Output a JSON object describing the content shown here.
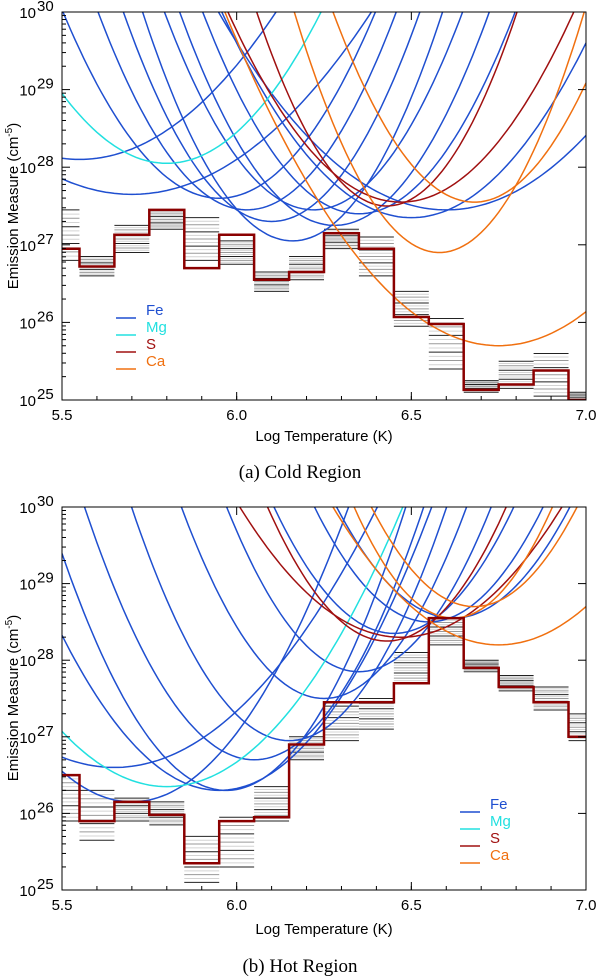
{
  "chart_data": [
    {
      "type": "line",
      "caption": "(a)  Cold Region",
      "xlabel": "Log Temperature (K)",
      "ylabel_main": "Emission Measure (cm",
      "ylabel_sup": "-5",
      "ylabel_close": ")",
      "xlim": [
        5.5,
        7.0
      ],
      "ylim_log10": [
        25,
        30
      ],
      "x_ticks": [
        5.5,
        6.0,
        6.5,
        7.0
      ],
      "x_tick_labels": [
        "5.5",
        "6.0",
        "6.5",
        "7.0"
      ],
      "y_ticks_log10": [
        25,
        26,
        27,
        28,
        29,
        30
      ],
      "y_tick_labels": [
        "10",
        "10",
        "10",
        "10",
        "10",
        "10"
      ],
      "y_tick_sups": [
        "25",
        "26",
        "27",
        "28",
        "29",
        "30"
      ],
      "legend": [
        {
          "label": "Fe",
          "color": "#1f4fd0"
        },
        {
          "label": "Mg",
          "color": "#22e0e0"
        },
        {
          "label": "S",
          "color": "#a01010"
        },
        {
          "label": "Ca",
          "color": "#f07010"
        }
      ],
      "em_loci": {
        "Fe": [
          {
            "min_x": 5.7,
            "min_y": 27.65,
            "curv": 5
          },
          {
            "min_x": 5.55,
            "min_y": 28.1,
            "curv": 6
          },
          {
            "min_x": 5.95,
            "min_y": 27.6,
            "curv": 12
          },
          {
            "min_x": 6.03,
            "min_y": 27.45,
            "curv": 14
          },
          {
            "min_x": 6.1,
            "min_y": 27.3,
            "curv": 15
          },
          {
            "min_x": 6.16,
            "min_y": 27.05,
            "curv": 16
          },
          {
            "min_x": 6.22,
            "min_y": 27.45,
            "curv": 14
          },
          {
            "min_x": 6.28,
            "min_y": 27.25,
            "curv": 14
          },
          {
            "min_x": 6.35,
            "min_y": 27.4,
            "curv": 13
          },
          {
            "min_x": 6.5,
            "min_y": 27.35,
            "curv": 9
          },
          {
            "min_x": 6.6,
            "min_y": 27.45,
            "curv": 6
          }
        ],
        "Mg": [
          {
            "min_x": 5.8,
            "min_y": 28.05,
            "curv": 10
          }
        ],
        "S": [
          {
            "min_x": 6.43,
            "min_y": 27.5,
            "curv": 18
          },
          {
            "min_x": 6.47,
            "min_y": 27.55,
            "curv": 10
          }
        ],
        "Ca": [
          {
            "min_x": 6.58,
            "min_y": 26.9,
            "curv": 18
          },
          {
            "min_x": 6.68,
            "min_y": 27.55,
            "curv": 15
          },
          {
            "min_x": 6.75,
            "min_y": 25.7,
            "curv": 7
          }
        ]
      },
      "solution_em": [
        {
          "x0": 5.5,
          "x1": 5.55,
          "log_em": 26.95
        },
        {
          "x0": 5.55,
          "x1": 5.65,
          "log_em": 26.72
        },
        {
          "x0": 5.65,
          "x1": 5.75,
          "log_em": 27.13
        },
        {
          "x0": 5.75,
          "x1": 5.85,
          "log_em": 27.45
        },
        {
          "x0": 5.85,
          "x1": 5.95,
          "log_em": 26.7
        },
        {
          "x0": 5.95,
          "x1": 6.05,
          "log_em": 27.13
        },
        {
          "x0": 6.05,
          "x1": 6.15,
          "log_em": 26.55
        },
        {
          "x0": 6.15,
          "x1": 6.25,
          "log_em": 26.65
        },
        {
          "x0": 6.25,
          "x1": 6.35,
          "log_em": 27.15
        },
        {
          "x0": 6.35,
          "x1": 6.45,
          "log_em": 26.95
        },
        {
          "x0": 6.45,
          "x1": 6.55,
          "log_em": 26.07
        },
        {
          "x0": 6.55,
          "x1": 6.65,
          "log_em": 25.98
        },
        {
          "x0": 6.65,
          "x1": 6.75,
          "log_em": 25.13
        },
        {
          "x0": 6.75,
          "x1": 6.85,
          "log_em": 25.2
        },
        {
          "x0": 6.85,
          "x1": 6.95,
          "log_em": 25.38
        },
        {
          "x0": 6.95,
          "x1": 7.0,
          "log_em": 25.0
        }
      ],
      "mc_spread": [
        {
          "x0": 5.5,
          "x1": 5.55,
          "lo": 26.8,
          "hi": 27.45
        },
        {
          "x0": 5.55,
          "x1": 5.65,
          "lo": 26.6,
          "hi": 26.85
        },
        {
          "x0": 5.65,
          "x1": 5.75,
          "lo": 26.9,
          "hi": 27.25
        },
        {
          "x0": 5.75,
          "x1": 5.85,
          "lo": 27.2,
          "hi": 27.45
        },
        {
          "x0": 5.85,
          "x1": 5.95,
          "lo": 26.8,
          "hi": 27.35
        },
        {
          "x0": 5.95,
          "x1": 6.05,
          "lo": 26.75,
          "hi": 27.05
        },
        {
          "x0": 6.05,
          "x1": 6.15,
          "lo": 26.4,
          "hi": 26.65
        },
        {
          "x0": 6.15,
          "x1": 6.25,
          "lo": 26.55,
          "hi": 26.85
        },
        {
          "x0": 6.25,
          "x1": 6.35,
          "lo": 26.95,
          "hi": 27.2
        },
        {
          "x0": 6.35,
          "x1": 6.45,
          "lo": 26.6,
          "hi": 27.1
        },
        {
          "x0": 6.45,
          "x1": 6.55,
          "lo": 25.95,
          "hi": 26.4
        },
        {
          "x0": 6.55,
          "x1": 6.65,
          "lo": 25.4,
          "hi": 26.05
        },
        {
          "x0": 6.65,
          "x1": 6.75,
          "lo": 25.1,
          "hi": 25.25
        },
        {
          "x0": 6.75,
          "x1": 6.85,
          "lo": 25.15,
          "hi": 25.5
        },
        {
          "x0": 6.85,
          "x1": 6.95,
          "lo": 25.05,
          "hi": 25.6
        },
        {
          "x0": 6.95,
          "x1": 7.0,
          "lo": 25.0,
          "hi": 25.1
        }
      ]
    },
    {
      "type": "line",
      "caption": "(b)  Hot Region",
      "xlabel": "Log Temperature (K)",
      "ylabel_main": "Emission Measure (cm",
      "ylabel_sup": "-5",
      "ylabel_close": ")",
      "xlim": [
        5.5,
        7.0
      ],
      "ylim_log10": [
        25,
        30
      ],
      "x_ticks": [
        5.5,
        6.0,
        6.5,
        7.0
      ],
      "x_tick_labels": [
        "5.5",
        "6.0",
        "6.5",
        "7.0"
      ],
      "y_ticks_log10": [
        25,
        26,
        27,
        28,
        29,
        30
      ],
      "y_tick_labels": [
        "10",
        "10",
        "10",
        "10",
        "10",
        "10"
      ],
      "y_tick_sups": [
        "25",
        "26",
        "27",
        "28",
        "29",
        "30"
      ],
      "legend": [
        {
          "label": "Fe",
          "color": "#1f4fd0"
        },
        {
          "label": "Mg",
          "color": "#22e0e0"
        },
        {
          "label": "S",
          "color": "#a01010"
        },
        {
          "label": "Ca",
          "color": "#f07010"
        }
      ],
      "em_loci": {
        "Fe": [
          {
            "min_x": 5.65,
            "min_y": 26.6,
            "curv": 6
          },
          {
            "min_x": 5.7,
            "min_y": 26.15,
            "curv": 10
          },
          {
            "min_x": 5.95,
            "min_y": 26.3,
            "curv": 10
          },
          {
            "min_x": 5.97,
            "min_y": 26.3,
            "curv": 14
          },
          {
            "min_x": 6.05,
            "min_y": 26.7,
            "curv": 14
          },
          {
            "min_x": 6.15,
            "min_y": 26.95,
            "curv": 15
          },
          {
            "min_x": 6.25,
            "min_y": 27.5,
            "curv": 15
          },
          {
            "min_x": 6.35,
            "min_y": 27.85,
            "curv": 15
          },
          {
            "min_x": 6.45,
            "min_y": 28.35,
            "curv": 14
          },
          {
            "min_x": 6.55,
            "min_y": 28.5,
            "curv": 14
          },
          {
            "min_x": 6.62,
            "min_y": 28.55,
            "curv": 13
          }
        ],
        "Mg": [
          {
            "min_x": 5.8,
            "min_y": 26.35,
            "curv": 8
          }
        ],
        "S": [
          {
            "min_x": 6.43,
            "min_y": 28.25,
            "curv": 15
          },
          {
            "min_x": 6.47,
            "min_y": 28.3,
            "curv": 8
          }
        ],
        "Ca": [
          {
            "min_x": 6.62,
            "min_y": 28.55,
            "curv": 18
          },
          {
            "min_x": 6.68,
            "min_y": 28.7,
            "curv": 15
          },
          {
            "min_x": 6.75,
            "min_y": 28.2,
            "curv": 8
          }
        ]
      },
      "solution_em": [
        {
          "x0": 5.5,
          "x1": 5.55,
          "log_em": 26.5
        },
        {
          "x0": 5.55,
          "x1": 5.65,
          "log_em": 25.9
        },
        {
          "x0": 5.65,
          "x1": 5.75,
          "log_em": 26.15
        },
        {
          "x0": 5.75,
          "x1": 5.85,
          "log_em": 25.98
        },
        {
          "x0": 5.85,
          "x1": 5.95,
          "log_em": 25.35
        },
        {
          "x0": 5.95,
          "x1": 6.05,
          "log_em": 25.9
        },
        {
          "x0": 6.05,
          "x1": 6.15,
          "log_em": 25.95
        },
        {
          "x0": 6.15,
          "x1": 6.25,
          "log_em": 26.9
        },
        {
          "x0": 6.25,
          "x1": 6.35,
          "log_em": 27.45
        },
        {
          "x0": 6.35,
          "x1": 6.45,
          "log_em": 27.45
        },
        {
          "x0": 6.45,
          "x1": 6.55,
          "log_em": 27.7
        },
        {
          "x0": 6.55,
          "x1": 6.65,
          "log_em": 28.55
        },
        {
          "x0": 6.65,
          "x1": 6.75,
          "log_em": 27.9
        },
        {
          "x0": 6.75,
          "x1": 6.85,
          "log_em": 27.65
        },
        {
          "x0": 6.85,
          "x1": 6.95,
          "log_em": 27.45
        },
        {
          "x0": 6.95,
          "x1": 7.0,
          "log_em": 27.0
        }
      ],
      "mc_spread": [
        {
          "x0": 5.5,
          "x1": 5.55,
          "lo": 25.9,
          "hi": 26.5
        },
        {
          "x0": 5.55,
          "x1": 5.65,
          "lo": 25.65,
          "hi": 26.3
        },
        {
          "x0": 5.65,
          "x1": 5.75,
          "lo": 25.9,
          "hi": 26.2
        },
        {
          "x0": 5.75,
          "x1": 5.85,
          "lo": 25.85,
          "hi": 26.15
        },
        {
          "x0": 5.85,
          "x1": 5.95,
          "lo": 25.1,
          "hi": 25.7
        },
        {
          "x0": 5.95,
          "x1": 6.05,
          "lo": 25.3,
          "hi": 25.95
        },
        {
          "x0": 6.05,
          "x1": 6.15,
          "lo": 25.9,
          "hi": 26.35
        },
        {
          "x0": 6.15,
          "x1": 6.25,
          "lo": 26.7,
          "hi": 27.0
        },
        {
          "x0": 6.25,
          "x1": 6.35,
          "lo": 26.95,
          "hi": 27.4
        },
        {
          "x0": 6.35,
          "x1": 6.45,
          "lo": 27.1,
          "hi": 27.5
        },
        {
          "x0": 6.45,
          "x1": 6.55,
          "lo": 27.7,
          "hi": 28.1
        },
        {
          "x0": 6.55,
          "x1": 6.65,
          "lo": 28.2,
          "hi": 28.55
        },
        {
          "x0": 6.65,
          "x1": 6.75,
          "lo": 27.85,
          "hi": 28.0
        },
        {
          "x0": 6.75,
          "x1": 6.85,
          "lo": 27.6,
          "hi": 27.8
        },
        {
          "x0": 6.85,
          "x1": 6.95,
          "lo": 27.35,
          "hi": 27.65
        },
        {
          "x0": 6.95,
          "x1": 7.0,
          "lo": 26.95,
          "hi": 27.3
        }
      ]
    }
  ]
}
